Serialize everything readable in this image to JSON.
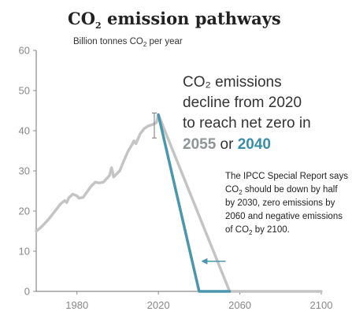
{
  "colors": {
    "grey_series": "#c4c4c4",
    "teal_series": "#4a97ad",
    "axis": "#8a8a8a",
    "arrow": "#4a97ad"
  },
  "title": {
    "main": "CO",
    "sub": "2",
    "rest": " emission pathways"
  },
  "unit_label": {
    "pre": "Billion tonnes CO",
    "sub": "2",
    "post": " per year"
  },
  "headline": {
    "line1": "CO₂ emissions",
    "line2": "decline from 2020",
    "line3": "to reach net zero in",
    "year_grey": "2055",
    "or": " or ",
    "year_teal": "2040"
  },
  "note": {
    "line1": "The IPCC Special Report says",
    "line2_pre": "CO",
    "line2_sub": "2",
    "line2_post": " should be down by half",
    "line3": "by 2030, zero emissions by",
    "line4": "2060 and negative emissions",
    "line5_pre": "of CO",
    "line5_sub": "2",
    "line5_post": " by 2100."
  },
  "chart_data": {
    "type": "line",
    "title": "CO₂ emission pathways",
    "ylabel": "Billion tonnes CO₂ per year",
    "xlim": [
      1960,
      2100
    ],
    "ylim": [
      0,
      60
    ],
    "x_ticks": [
      1980,
      2020,
      2060,
      2100
    ],
    "y_ticks": [
      0,
      10,
      20,
      30,
      40,
      50,
      60
    ],
    "grid": false,
    "series": [
      {
        "color": "grey",
        "points": [
          [
            1960,
            15
          ],
          [
            1962,
            15.8
          ],
          [
            1964,
            16.8
          ],
          [
            1966,
            17.9
          ],
          [
            1968,
            19.2
          ],
          [
            1970,
            20.5
          ],
          [
            1972,
            21.8
          ],
          [
            1974,
            22.6
          ],
          [
            1975,
            22.1
          ],
          [
            1976,
            23.3
          ],
          [
            1978,
            24.2
          ],
          [
            1980,
            23.8
          ],
          [
            1981,
            23.2
          ],
          [
            1983,
            23.4
          ],
          [
            1985,
            24.8
          ],
          [
            1987,
            26.2
          ],
          [
            1989,
            27.2
          ],
          [
            1991,
            27.0
          ],
          [
            1993,
            27.2
          ],
          [
            1995,
            28.3
          ],
          [
            1996,
            28.9
          ],
          [
            1997,
            30.8
          ],
          [
            1998,
            28.5
          ],
          [
            1999,
            29.0
          ],
          [
            2001,
            30.0
          ],
          [
            2003,
            32.5
          ],
          [
            2005,
            34.8
          ],
          [
            2007,
            36.5
          ],
          [
            2008,
            37.5
          ],
          [
            2009,
            36.8
          ],
          [
            2011,
            39.2
          ],
          [
            2013,
            40.5
          ],
          [
            2015,
            41.2
          ],
          [
            2017,
            41.5
          ],
          [
            2019,
            42.0
          ],
          [
            2020,
            44
          ],
          [
            2055,
            0
          ],
          [
            2100,
            0
          ]
        ]
      },
      {
        "color": "teal",
        "points": [
          [
            2020,
            44
          ],
          [
            2040,
            0
          ],
          [
            2055,
            0
          ]
        ]
      }
    ],
    "annotations": [
      {
        "type": "error_bar",
        "x": 2018,
        "low": 38.2,
        "high": 44.4
      },
      {
        "type": "arrow",
        "from": [
          2053,
          7.5
        ],
        "to": [
          2041,
          7.5
        ]
      }
    ]
  }
}
